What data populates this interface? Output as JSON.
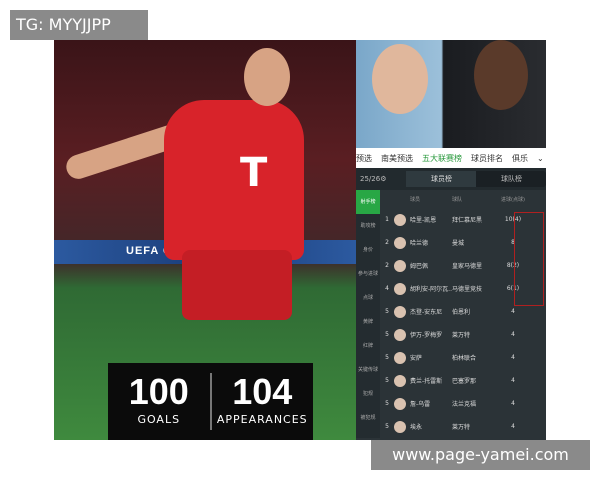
{
  "watermarks": {
    "top_left": "TG: MYYJJPP",
    "bottom_right": "www.page-yamei.com"
  },
  "photo": {
    "stats": [
      {
        "value": "100",
        "label": "GOALS"
      },
      {
        "value": "104",
        "label": "APPEARANCES"
      }
    ],
    "board_text": "UEFA CL"
  },
  "app": {
    "tabs": [
      "预选",
      "南美预选",
      "五大联赛榜",
      "球员排名",
      "俱乐"
    ],
    "active_tab": "五大联赛榜",
    "season": "25/26",
    "toggle": [
      "球员榜",
      "球队榜"
    ],
    "sidebar": [
      "射手榜",
      "助攻榜",
      "身价",
      "参与进球",
      "点球",
      "黄牌",
      "红牌",
      "关键传球",
      "犯规",
      "被犯规"
    ],
    "headers": [
      "球员",
      "球队",
      "进球(点球)"
    ],
    "rows": [
      {
        "rank": "1",
        "player": "哈里-凯恩",
        "team": "拜仁慕尼黑",
        "goals": "10(4)"
      },
      {
        "rank": "2",
        "player": "哈兰德",
        "team": "曼城",
        "goals": "8"
      },
      {
        "rank": "2",
        "player": "姆巴佩",
        "team": "皇家马德里",
        "goals": "8(2)"
      },
      {
        "rank": "4",
        "player": "胡利安-阿尔瓦...",
        "team": "马德里竞技",
        "goals": "6(1)"
      },
      {
        "rank": "5",
        "player": "杰登-安东尼",
        "team": "伯恩利",
        "goals": "4"
      },
      {
        "rank": "5",
        "player": "伊万-罗梅罗",
        "team": "莱万特",
        "goals": "4"
      },
      {
        "rank": "5",
        "player": "安萨",
        "team": "柏林联合",
        "goals": "4"
      },
      {
        "rank": "5",
        "player": "费兰-托雷斯",
        "team": "巴塞罗那",
        "goals": "4"
      },
      {
        "rank": "5",
        "player": "詹-乌雷",
        "team": "法兰克福",
        "goals": "4"
      },
      {
        "rank": "5",
        "player": "埃永",
        "team": "莱万特",
        "goals": "4"
      }
    ],
    "colors": {
      "accent": "#28a745",
      "highlight": "#b02020"
    }
  }
}
